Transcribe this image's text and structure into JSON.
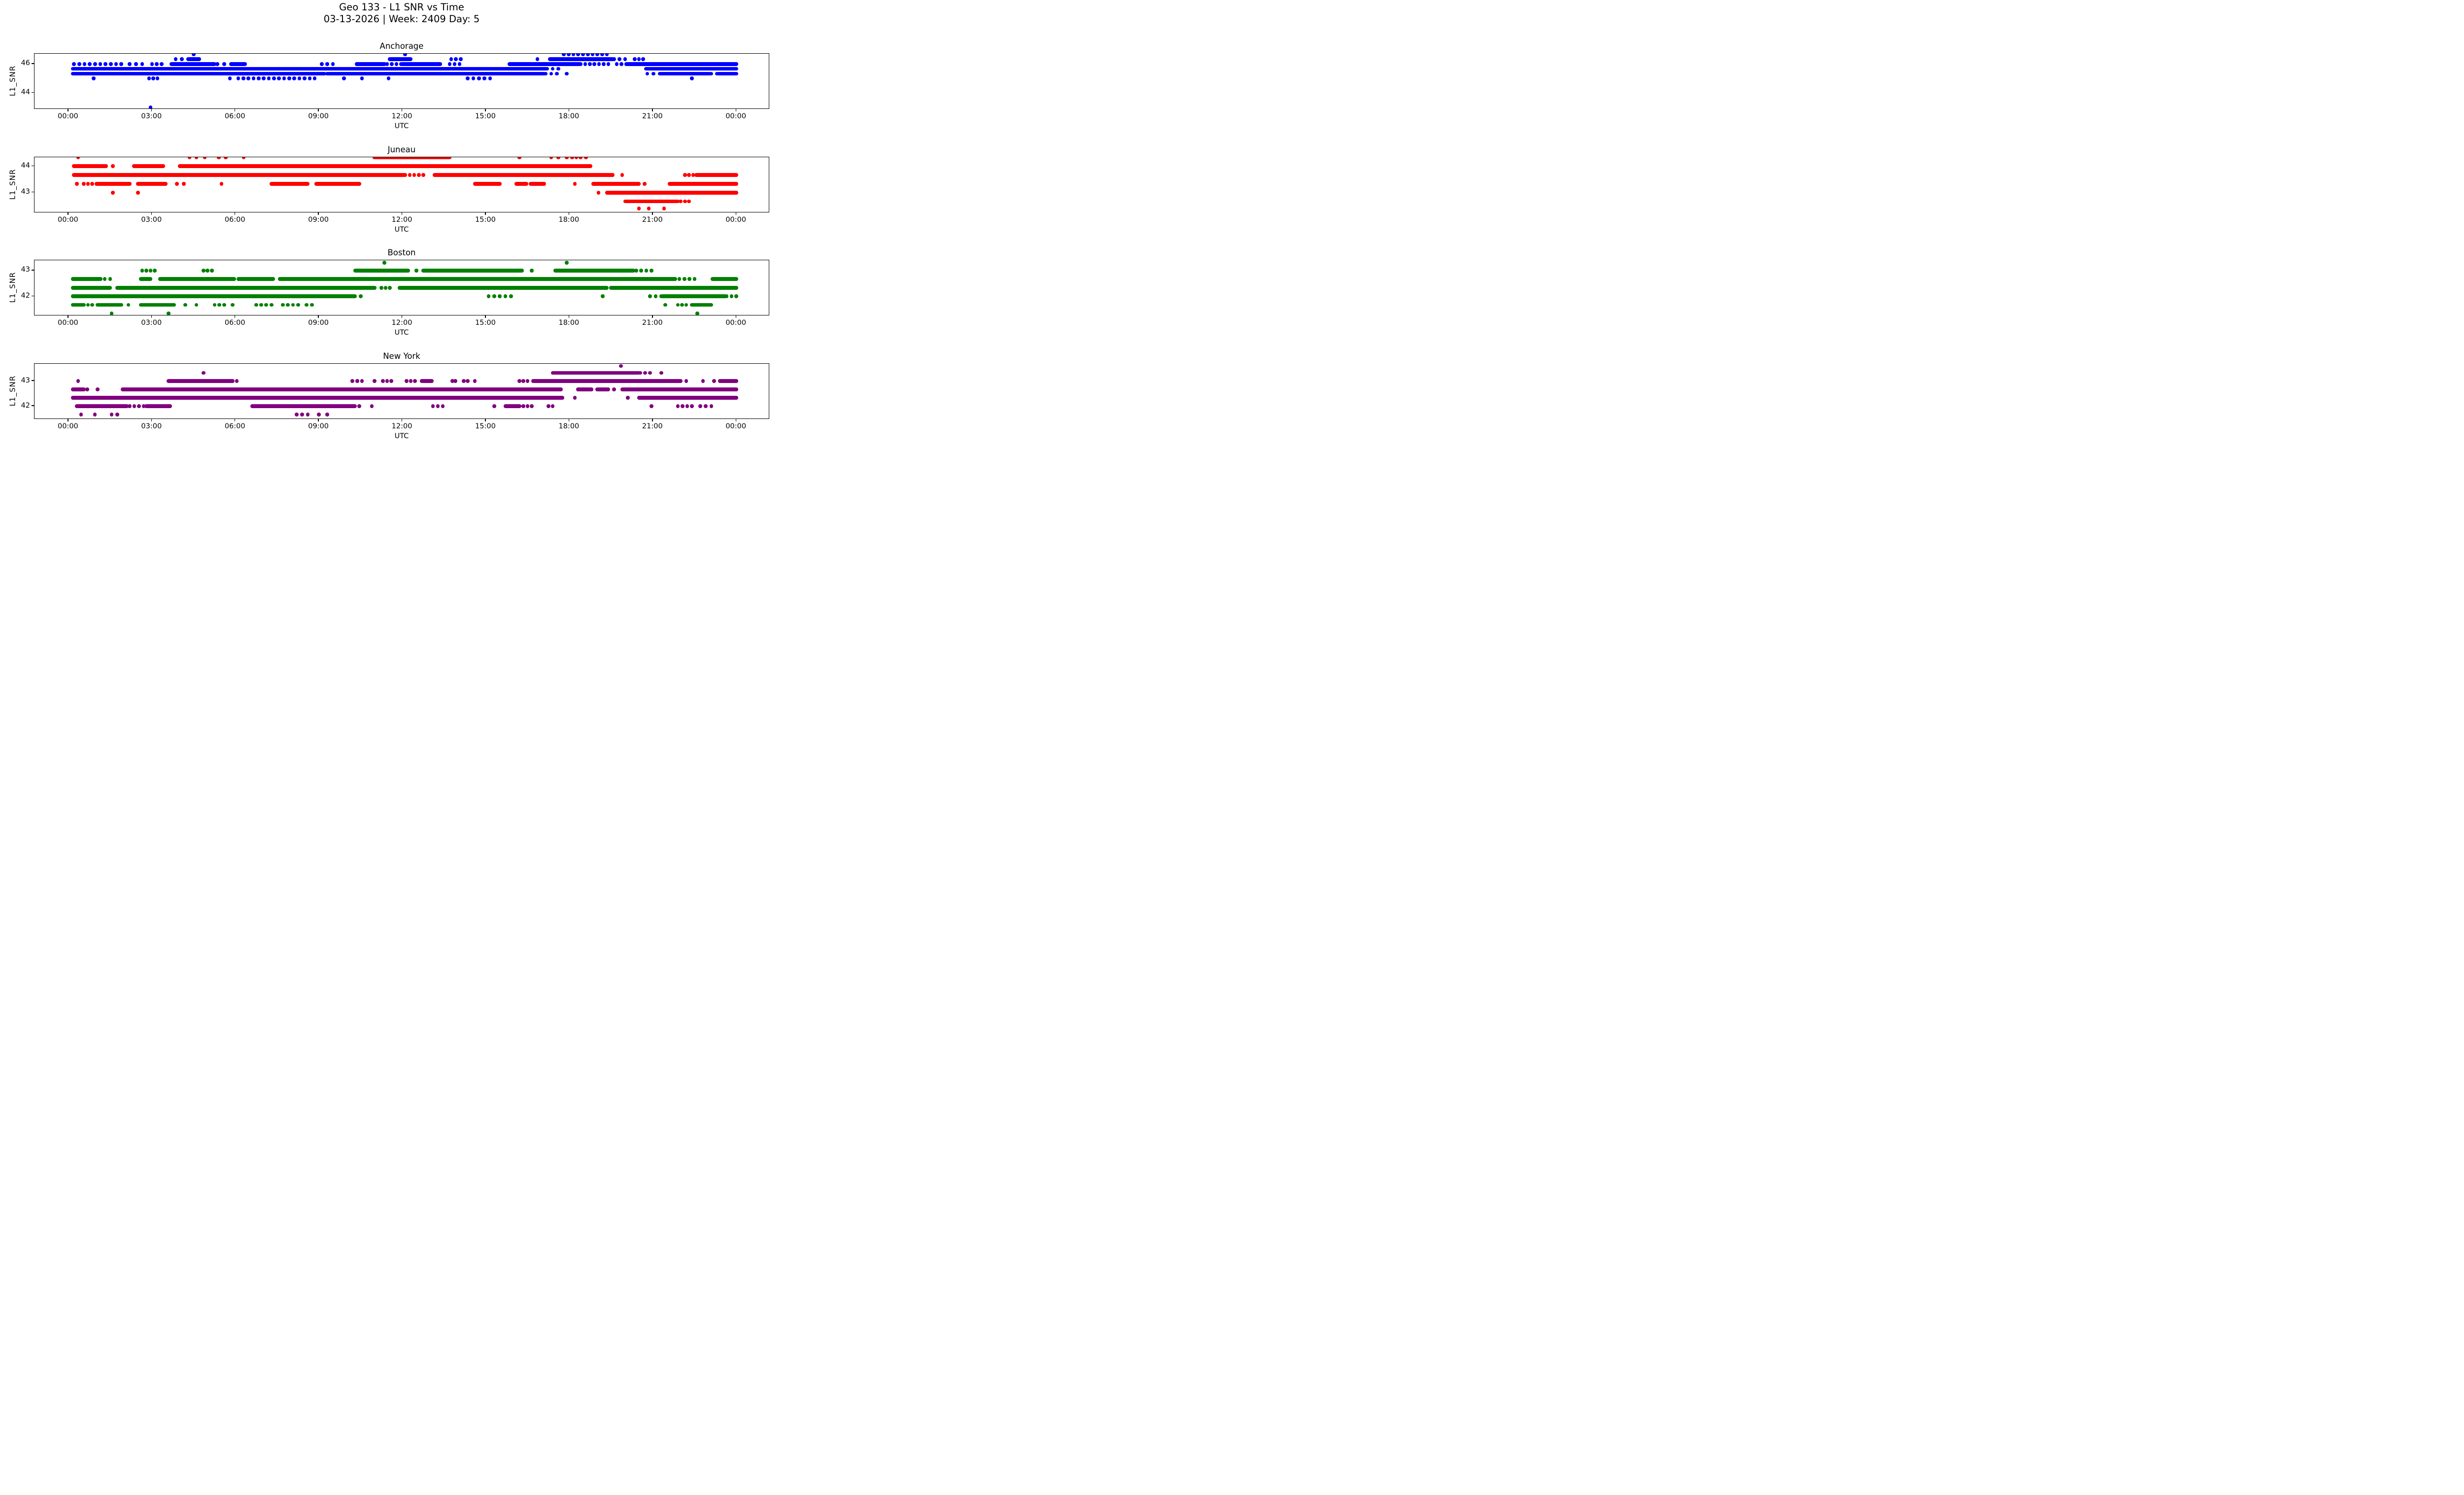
{
  "title": {
    "line1": "Geo 133 - L1 SNR vs Time",
    "line2": "03-13-2026 | Week: 2409 Day: 5"
  },
  "y_axis_label": "L1_SNR",
  "x_axis": {
    "label": "UTC",
    "tick_hours": [
      0,
      3,
      6,
      9,
      12,
      15,
      18,
      21,
      24
    ],
    "tick_labels": [
      "00:00",
      "03:00",
      "06:00",
      "09:00",
      "12:00",
      "15:00",
      "18:00",
      "21:00",
      "00:00"
    ],
    "xlim_hours": [
      -1.22,
      25.2
    ]
  },
  "chart_data": [
    {
      "type": "scatter",
      "station": "Anchorage",
      "color": "#0000ff",
      "ylim": [
        42.86,
        46.71
      ],
      "y_ticks": [
        46,
        44
      ],
      "note": "segments are [snr_level_dbhz, start_hour_utc, end_hour_utc, d=dense|s=sparse]",
      "segments": [
        [
          46.67,
          17.8,
          19.35,
          "s"
        ],
        [
          46.67,
          12.1,
          12.1,
          "s"
        ],
        [
          46.67,
          4.5,
          4.5,
          "s"
        ],
        [
          46.33,
          3.85,
          4.3,
          "s"
        ],
        [
          46.33,
          4.35,
          4.7,
          "d"
        ],
        [
          46.33,
          11.55,
          12.3,
          "d"
        ],
        [
          46.33,
          13.75,
          14.1,
          "s"
        ],
        [
          46.33,
          16.85,
          16.85,
          "s"
        ],
        [
          46.33,
          17.3,
          19.55,
          "d"
        ],
        [
          46.33,
          19.6,
          20.0,
          "s"
        ],
        [
          46.33,
          20.35,
          20.65,
          "s"
        ],
        [
          46.0,
          0.2,
          1.9,
          "s"
        ],
        [
          46.0,
          2.2,
          2.65,
          "s"
        ],
        [
          46.0,
          3.0,
          3.35,
          "s"
        ],
        [
          46.0,
          3.7,
          5.25,
          "d"
        ],
        [
          46.0,
          5.35,
          5.6,
          "s"
        ],
        [
          46.0,
          5.85,
          6.35,
          "d"
        ],
        [
          46.0,
          9.1,
          9.5,
          "s"
        ],
        [
          46.0,
          10.35,
          11.35,
          "d"
        ],
        [
          46.0,
          11.45,
          11.95,
          "s"
        ],
        [
          46.0,
          12.0,
          13.35,
          "d"
        ],
        [
          46.0,
          13.7,
          14.05,
          "s"
        ],
        [
          46.0,
          15.85,
          18.35,
          "d"
        ],
        [
          46.0,
          18.4,
          19.4,
          "s"
        ],
        [
          46.0,
          19.7,
          20.05,
          "s"
        ],
        [
          46.0,
          20.1,
          24.0,
          "d"
        ],
        [
          45.67,
          0.15,
          17.15,
          "d"
        ],
        [
          45.67,
          17.2,
          17.6,
          "s"
        ],
        [
          45.67,
          20.75,
          24.0,
          "d"
        ],
        [
          45.33,
          0.15,
          9.2,
          "d"
        ],
        [
          45.33,
          9.3,
          17.1,
          "d"
        ],
        [
          45.33,
          17.15,
          17.55,
          "s"
        ],
        [
          45.33,
          17.9,
          17.9,
          "s"
        ],
        [
          45.33,
          20.8,
          21.25,
          "s"
        ],
        [
          45.33,
          21.3,
          23.05,
          "d"
        ],
        [
          45.33,
          23.1,
          23.3,
          "s"
        ],
        [
          45.33,
          23.35,
          24.0,
          "d"
        ],
        [
          45.0,
          0.9,
          0.9,
          "s"
        ],
        [
          45.0,
          2.9,
          3.2,
          "s"
        ],
        [
          45.0,
          5.8,
          5.8,
          "s"
        ],
        [
          45.0,
          6.1,
          8.85,
          "s"
        ],
        [
          45.0,
          9.9,
          9.9,
          "s"
        ],
        [
          45.0,
          10.55,
          10.55,
          "s"
        ],
        [
          45.0,
          11.5,
          11.5,
          "s"
        ],
        [
          45.0,
          14.35,
          15.15,
          "s"
        ],
        [
          45.0,
          22.4,
          22.4,
          "s"
        ],
        [
          43.0,
          2.95,
          2.95,
          "s"
        ]
      ]
    },
    {
      "type": "scatter",
      "station": "Juneau",
      "color": "#ff0000",
      "ylim": [
        42.23,
        44.34
      ],
      "y_ticks": [
        44,
        43
      ],
      "segments": [
        [
          44.33,
          0.35,
          0.35,
          "s"
        ],
        [
          44.33,
          4.35,
          4.6,
          "s"
        ],
        [
          44.33,
          4.9,
          4.9,
          "s"
        ],
        [
          44.33,
          5.4,
          5.65,
          "s"
        ],
        [
          44.33,
          6.3,
          6.3,
          "s"
        ],
        [
          44.33,
          11.0,
          13.7,
          "d"
        ],
        [
          44.33,
          16.2,
          16.2,
          "s"
        ],
        [
          44.33,
          17.35,
          17.6,
          "s"
        ],
        [
          44.33,
          17.9,
          17.9,
          "s"
        ],
        [
          44.33,
          18.1,
          18.4,
          "s"
        ],
        [
          44.33,
          18.6,
          18.6,
          "s"
        ],
        [
          44.0,
          0.2,
          1.35,
          "d"
        ],
        [
          44.0,
          1.6,
          1.6,
          "s"
        ],
        [
          44.0,
          2.35,
          3.4,
          "d"
        ],
        [
          44.0,
          4.0,
          18.75,
          "d"
        ],
        [
          43.67,
          0.2,
          12.05,
          "d"
        ],
        [
          43.67,
          12.1,
          12.75,
          "s"
        ],
        [
          43.67,
          13.15,
          19.55,
          "d"
        ],
        [
          43.67,
          19.9,
          19.9,
          "s"
        ],
        [
          43.67,
          22.15,
          22.45,
          "s"
        ],
        [
          43.67,
          22.55,
          24.0,
          "d"
        ],
        [
          43.33,
          0.3,
          0.3,
          "s"
        ],
        [
          43.33,
          0.55,
          0.85,
          "s"
        ],
        [
          43.33,
          1.0,
          2.2,
          "d"
        ],
        [
          43.33,
          2.5,
          3.5,
          "d"
        ],
        [
          43.33,
          3.9,
          3.9,
          "s"
        ],
        [
          43.33,
          4.15,
          4.15,
          "s"
        ],
        [
          43.33,
          5.5,
          5.5,
          "s"
        ],
        [
          43.33,
          7.3,
          8.6,
          "d"
        ],
        [
          43.33,
          8.9,
          10.45,
          "d"
        ],
        [
          43.33,
          14.6,
          15.5,
          "d"
        ],
        [
          43.33,
          16.1,
          16.45,
          "d"
        ],
        [
          43.33,
          16.6,
          17.1,
          "d"
        ],
        [
          43.33,
          18.2,
          18.2,
          "s"
        ],
        [
          43.33,
          18.85,
          20.5,
          "d"
        ],
        [
          43.33,
          20.7,
          20.7,
          "s"
        ],
        [
          43.33,
          21.6,
          24.0,
          "d"
        ],
        [
          43.0,
          1.6,
          1.6,
          "s"
        ],
        [
          43.0,
          2.5,
          2.5,
          "s"
        ],
        [
          43.0,
          19.05,
          19.05,
          "s"
        ],
        [
          43.0,
          19.35,
          24.0,
          "d"
        ],
        [
          42.67,
          20.0,
          21.9,
          "d"
        ],
        [
          42.67,
          22.0,
          22.3,
          "s"
        ],
        [
          42.4,
          20.5,
          20.5,
          "s"
        ],
        [
          42.4,
          20.85,
          20.85,
          "s"
        ],
        [
          42.4,
          21.4,
          21.4,
          "s"
        ]
      ]
    },
    {
      "type": "scatter",
      "station": "Boston",
      "color": "#008000",
      "ylim": [
        41.24,
        43.4
      ],
      "y_ticks": [
        43,
        42
      ],
      "segments": [
        [
          43.3,
          11.35,
          11.35,
          "s"
        ],
        [
          43.3,
          17.9,
          17.9,
          "s"
        ],
        [
          43.0,
          2.65,
          3.1,
          "s"
        ],
        [
          43.0,
          4.85,
          5.15,
          "s"
        ],
        [
          43.0,
          10.3,
          12.2,
          "d"
        ],
        [
          43.0,
          12.5,
          12.75,
          "s"
        ],
        [
          43.0,
          12.8,
          16.3,
          "d"
        ],
        [
          43.0,
          16.65,
          16.65,
          "s"
        ],
        [
          43.0,
          17.5,
          20.3,
          "d"
        ],
        [
          43.0,
          20.4,
          20.95,
          "s"
        ],
        [
          42.67,
          0.15,
          1.15,
          "d"
        ],
        [
          42.67,
          1.3,
          1.5,
          "s"
        ],
        [
          42.67,
          2.6,
          2.95,
          "d"
        ],
        [
          42.67,
          3.3,
          5.95,
          "d"
        ],
        [
          42.67,
          6.1,
          7.35,
          "d"
        ],
        [
          42.67,
          7.6,
          21.8,
          "d"
        ],
        [
          42.67,
          21.95,
          22.5,
          "s"
        ],
        [
          42.67,
          23.15,
          24.0,
          "d"
        ],
        [
          42.33,
          0.15,
          1.5,
          "d"
        ],
        [
          42.33,
          1.75,
          11.0,
          "d"
        ],
        [
          42.33,
          11.25,
          11.55,
          "s"
        ],
        [
          42.33,
          11.9,
          19.35,
          "d"
        ],
        [
          42.33,
          19.5,
          24.0,
          "d"
        ],
        [
          42.0,
          0.15,
          10.3,
          "d"
        ],
        [
          42.0,
          10.5,
          10.5,
          "s"
        ],
        [
          42.0,
          15.1,
          15.9,
          "s"
        ],
        [
          42.0,
          19.2,
          19.2,
          "s"
        ],
        [
          42.0,
          20.9,
          21.3,
          "s"
        ],
        [
          42.0,
          21.35,
          23.6,
          "d"
        ],
        [
          42.0,
          23.65,
          24.0,
          "s"
        ],
        [
          41.67,
          0.15,
          0.5,
          "d"
        ],
        [
          41.67,
          0.55,
          0.85,
          "s"
        ],
        [
          41.67,
          1.05,
          1.9,
          "d"
        ],
        [
          41.67,
          2.15,
          2.15,
          "s"
        ],
        [
          41.67,
          2.6,
          3.8,
          "d"
        ],
        [
          41.67,
          4.2,
          4.2,
          "s"
        ],
        [
          41.67,
          4.6,
          4.6,
          "s"
        ],
        [
          41.67,
          5.25,
          5.6,
          "s"
        ],
        [
          41.67,
          5.9,
          5.9,
          "s"
        ],
        [
          41.67,
          6.75,
          7.1,
          "s"
        ],
        [
          41.67,
          7.3,
          7.3,
          "s"
        ],
        [
          41.67,
          7.7,
          8.25,
          "s"
        ],
        [
          41.67,
          8.55,
          8.75,
          "s"
        ],
        [
          41.67,
          21.45,
          21.45,
          "s"
        ],
        [
          41.67,
          21.9,
          22.2,
          "s"
        ],
        [
          41.67,
          22.4,
          23.1,
          "d"
        ],
        [
          41.33,
          1.55,
          1.55,
          "s"
        ],
        [
          41.33,
          3.6,
          3.6,
          "s"
        ],
        [
          41.33,
          22.6,
          22.6,
          "s"
        ]
      ]
    },
    {
      "type": "scatter",
      "station": "New York",
      "color": "#800080",
      "ylim": [
        41.47,
        43.69
      ],
      "y_ticks": [
        43,
        42
      ],
      "segments": [
        [
          43.6,
          19.85,
          19.85,
          "s"
        ],
        [
          43.33,
          4.85,
          4.85,
          "s"
        ],
        [
          43.33,
          17.4,
          20.5,
          "d"
        ],
        [
          43.33,
          20.55,
          20.9,
          "s"
        ],
        [
          43.33,
          21.3,
          21.3,
          "s"
        ],
        [
          43.0,
          0.35,
          0.35,
          "s"
        ],
        [
          43.0,
          3.6,
          5.9,
          "d"
        ],
        [
          43.0,
          6.05,
          6.05,
          "s"
        ],
        [
          43.0,
          10.2,
          10.55,
          "s"
        ],
        [
          43.0,
          11.0,
          11.0,
          "s"
        ],
        [
          43.0,
          11.3,
          11.6,
          "s"
        ],
        [
          43.0,
          12.15,
          12.45,
          "s"
        ],
        [
          43.0,
          12.7,
          13.05,
          "d"
        ],
        [
          43.0,
          13.8,
          13.9,
          "s"
        ],
        [
          43.0,
          14.2,
          14.35,
          "s"
        ],
        [
          43.0,
          14.6,
          14.6,
          "s"
        ],
        [
          43.0,
          16.2,
          16.5,
          "s"
        ],
        [
          43.0,
          16.7,
          22.0,
          "d"
        ],
        [
          43.0,
          22.2,
          22.2,
          "s"
        ],
        [
          43.0,
          22.8,
          22.8,
          "s"
        ],
        [
          43.0,
          23.2,
          23.2,
          "s"
        ],
        [
          43.0,
          23.4,
          24.0,
          "d"
        ],
        [
          42.67,
          0.15,
          0.55,
          "d"
        ],
        [
          42.67,
          0.68,
          0.68,
          "s"
        ],
        [
          42.67,
          1.05,
          1.05,
          "s"
        ],
        [
          42.67,
          1.95,
          17.7,
          "d"
        ],
        [
          42.67,
          18.3,
          18.75,
          "d"
        ],
        [
          42.67,
          18.8,
          19.0,
          "s"
        ],
        [
          42.67,
          19.05,
          19.4,
          "d"
        ],
        [
          42.67,
          19.6,
          19.6,
          "s"
        ],
        [
          42.67,
          19.9,
          24.0,
          "d"
        ],
        [
          42.33,
          0.15,
          17.75,
          "d"
        ],
        [
          42.33,
          18.2,
          18.2,
          "s"
        ],
        [
          42.33,
          20.1,
          20.1,
          "s"
        ],
        [
          42.33,
          20.5,
          24.0,
          "d"
        ],
        [
          42.0,
          0.3,
          2.1,
          "d"
        ],
        [
          42.0,
          2.2,
          2.7,
          "s"
        ],
        [
          42.0,
          2.8,
          3.65,
          "d"
        ],
        [
          42.0,
          6.6,
          10.3,
          "d"
        ],
        [
          42.0,
          10.45,
          10.45,
          "s"
        ],
        [
          42.0,
          10.9,
          10.9,
          "s"
        ],
        [
          42.0,
          13.1,
          13.45,
          "s"
        ],
        [
          42.0,
          15.3,
          15.3,
          "s"
        ],
        [
          42.0,
          15.7,
          16.2,
          "d"
        ],
        [
          42.0,
          16.35,
          16.65,
          "s"
        ],
        [
          42.0,
          17.25,
          17.4,
          "s"
        ],
        [
          42.0,
          20.95,
          20.95,
          "s"
        ],
        [
          42.0,
          21.9,
          22.4,
          "s"
        ],
        [
          42.0,
          22.7,
          23.1,
          "s"
        ],
        [
          41.67,
          0.45,
          0.45,
          "s"
        ],
        [
          41.67,
          0.95,
          0.95,
          "s"
        ],
        [
          41.67,
          1.55,
          1.75,
          "s"
        ],
        [
          41.67,
          8.2,
          8.6,
          "s"
        ],
        [
          41.67,
          9.0,
          9.0,
          "s"
        ],
        [
          41.67,
          9.3,
          9.3,
          "s"
        ]
      ]
    }
  ]
}
